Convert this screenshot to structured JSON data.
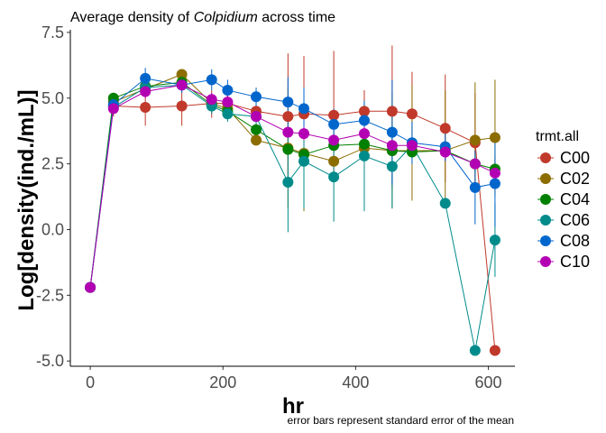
{
  "chart_data": {
    "type": "line",
    "title_prefix": "Average density of ",
    "title_italic": "Colpidium",
    "title_suffix": " across time",
    "xlabel": "hr",
    "ylabel": "Log[density(ind./mL)]",
    "caption": "error bars represent standard error of the mean",
    "xlim": [
      -30,
      640
    ],
    "ylim": [
      -5.2,
      7.6
    ],
    "x_ticks": [
      0,
      200,
      400,
      600
    ],
    "y_ticks": [
      -5.0,
      -2.5,
      0.0,
      2.5,
      5.0,
      7.5
    ],
    "x_tick_labels": [
      "0",
      "200",
      "400",
      "600"
    ],
    "y_tick_labels": [
      "-5.0",
      "-2.5",
      "0.0",
      "2.5",
      "5.0",
      "7.5"
    ],
    "grid": false,
    "error_bars": "standard error of the mean",
    "legend": {
      "title": "trmt.all",
      "position": "right"
    },
    "series": [
      {
        "name": "C00",
        "color": "#c0392b",
        "x": [
          0,
          35,
          83,
          138,
          183,
          207,
          250,
          298,
          322,
          367,
          413,
          455,
          485,
          535,
          580,
          610
        ],
        "y": [
          -2.2,
          4.7,
          4.65,
          4.7,
          4.8,
          4.8,
          4.5,
          4.3,
          4.4,
          4.35,
          4.5,
          4.5,
          4.4,
          3.85,
          3.3,
          -4.6
        ],
        "err_low": [
          -2.2,
          4.3,
          3.95,
          3.95,
          4.25,
          4.3,
          3.9,
          2.0,
          2.2,
          2.0,
          3.7,
          1.5,
          2.8,
          1.8,
          1.4,
          -4.6
        ],
        "err_high": [
          -2.2,
          5.1,
          5.4,
          5.45,
          5.3,
          5.3,
          5.1,
          6.7,
          6.6,
          6.8,
          5.3,
          7.0,
          6.0,
          5.9,
          5.2,
          -4.6
        ]
      },
      {
        "name": "C02",
        "color": "#8c6d00",
        "x": [
          0,
          35,
          83,
          138,
          183,
          207,
          250,
          298,
          322,
          367,
          413,
          455,
          485,
          535,
          580,
          610
        ],
        "y": [
          -2.2,
          4.85,
          5.35,
          5.9,
          4.8,
          4.6,
          3.4,
          3.1,
          2.9,
          2.6,
          3.1,
          3.0,
          3.0,
          3.0,
          3.4,
          3.5
        ],
        "err_low": [
          -2.2,
          4.6,
          5.05,
          5.75,
          4.5,
          4.2,
          3.2,
          0.8,
          0.7,
          2.4,
          2.8,
          0.8,
          1.1,
          0.9,
          1.5,
          1.3
        ],
        "err_high": [
          -2.2,
          5.1,
          5.65,
          6.05,
          5.1,
          5.0,
          3.6,
          5.4,
          5.1,
          2.8,
          3.4,
          5.2,
          5.5,
          5.3,
          5.6,
          5.7
        ]
      },
      {
        "name": "C04",
        "color": "#008000",
        "x": [
          0,
          35,
          83,
          138,
          183,
          207,
          250,
          298,
          322,
          367,
          413,
          455,
          485,
          535,
          580,
          610
        ],
        "y": [
          -2.2,
          5.0,
          5.45,
          5.6,
          4.75,
          4.5,
          3.8,
          3.05,
          2.85,
          3.2,
          3.25,
          3.0,
          2.95,
          3.0,
          2.5,
          2.3
        ],
        "err_low": [
          -2.2,
          4.8,
          5.1,
          5.4,
          4.5,
          4.2,
          3.5,
          2.8,
          2.6,
          3.0,
          3.0,
          2.8,
          2.7,
          2.8,
          2.2,
          1.8
        ],
        "err_high": [
          -2.2,
          5.2,
          5.8,
          5.8,
          5.0,
          4.8,
          4.1,
          3.3,
          3.1,
          3.4,
          3.5,
          3.2,
          3.2,
          3.2,
          2.8,
          2.8
        ]
      },
      {
        "name": "C06",
        "color": "#008b8b",
        "x": [
          0,
          35,
          83,
          138,
          183,
          207,
          250,
          298,
          322,
          367,
          413,
          455,
          485,
          535,
          580,
          610
        ],
        "y": [
          -2.2,
          4.65,
          5.4,
          5.5,
          4.7,
          4.4,
          4.3,
          1.8,
          2.6,
          2.0,
          2.8,
          2.4,
          3.2,
          1.0,
          -4.6,
          -0.4
        ],
        "err_low": [
          -2.2,
          4.4,
          5.1,
          5.3,
          4.4,
          4.1,
          4.0,
          -0.1,
          0.8,
          0.3,
          0.7,
          0.8,
          3.0,
          1.0,
          -4.6,
          -1.8
        ],
        "err_high": [
          -2.2,
          4.9,
          5.7,
          5.7,
          5.0,
          4.7,
          4.6,
          3.7,
          4.4,
          3.7,
          4.9,
          4.0,
          3.4,
          1.0,
          -4.6,
          1.0
        ]
      },
      {
        "name": "C08",
        "color": "#0066cc",
        "x": [
          0,
          35,
          83,
          138,
          183,
          207,
          250,
          298,
          322,
          367,
          413,
          455,
          485,
          535,
          580,
          610
        ],
        "y": [
          -2.2,
          4.75,
          5.75,
          5.5,
          5.7,
          5.3,
          5.05,
          4.85,
          4.6,
          4.0,
          4.15,
          3.7,
          3.3,
          3.15,
          1.6,
          1.75
        ],
        "err_low": [
          -2.2,
          4.5,
          5.35,
          5.2,
          5.3,
          4.9,
          4.7,
          3.9,
          3.8,
          3.4,
          3.4,
          1.7,
          2.5,
          2.6,
          0.2,
          0.1
        ],
        "err_high": [
          -2.2,
          5.0,
          6.15,
          5.8,
          6.1,
          5.7,
          5.4,
          5.8,
          5.4,
          4.6,
          4.9,
          5.7,
          4.1,
          3.7,
          3.0,
          3.4
        ]
      },
      {
        "name": "C10",
        "color": "#b300b3",
        "x": [
          0,
          35,
          83,
          138,
          183,
          207,
          250,
          298,
          322,
          367,
          413,
          455,
          485,
          535,
          580,
          610
        ],
        "y": [
          -2.2,
          4.6,
          5.25,
          5.5,
          4.95,
          4.85,
          4.3,
          3.7,
          3.65,
          3.4,
          3.65,
          3.2,
          3.2,
          2.95,
          2.5,
          2.15
        ],
        "err_low": [
          -2.2,
          4.4,
          5.0,
          5.3,
          4.7,
          4.6,
          4.1,
          3.5,
          3.4,
          3.2,
          3.4,
          3.0,
          3.0,
          2.7,
          2.3,
          1.9
        ],
        "err_high": [
          -2.2,
          4.8,
          5.5,
          5.7,
          5.2,
          5.1,
          4.5,
          3.9,
          3.9,
          3.6,
          3.9,
          3.4,
          3.4,
          3.2,
          2.7,
          2.4
        ]
      }
    ]
  }
}
